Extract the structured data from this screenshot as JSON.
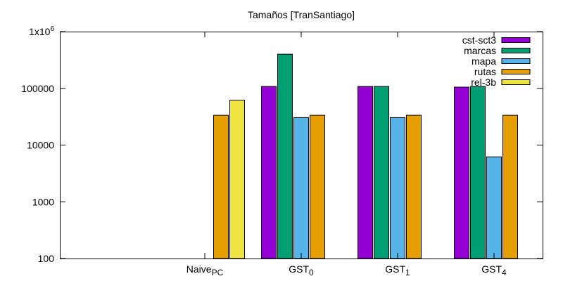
{
  "chart_data": {
    "type": "bar",
    "title": "Tamaños [TranSantiago]",
    "xlabel": "",
    "ylabel": "",
    "yscale": "log",
    "ylim": [
      100,
      1000000
    ],
    "yticks": [
      {
        "value": 100,
        "label": "100"
      },
      {
        "value": 1000,
        "label": "1000"
      },
      {
        "value": 10000,
        "label": "10000"
      },
      {
        "value": 100000,
        "label": "100000"
      },
      {
        "value": 1000000,
        "label": "1x10",
        "sup": "6"
      }
    ],
    "categories": [
      {
        "base": "Naive",
        "sub": "PC"
      },
      {
        "base": "GST",
        "sub": "0"
      },
      {
        "base": "GST",
        "sub": "1"
      },
      {
        "base": "GST",
        "sub": "4"
      }
    ],
    "legend_position": "top-right",
    "grid": false,
    "series": [
      {
        "name": "cst-sct3",
        "color": "#9400d3",
        "values": [
          null,
          108000,
          108000,
          105000
        ]
      },
      {
        "name": "marcas",
        "color": "#009e73",
        "values": [
          null,
          400000,
          108000,
          108000
        ]
      },
      {
        "name": "mapa",
        "color": "#56b4e9",
        "values": [
          null,
          30500,
          30500,
          6200
        ]
      },
      {
        "name": "rutas",
        "color": "#e69f00",
        "values": [
          33500,
          33500,
          33500,
          33500
        ]
      },
      {
        "name": "rel-3b",
        "color": "#f0e442",
        "values": [
          62000,
          null,
          null,
          null
        ]
      }
    ]
  }
}
